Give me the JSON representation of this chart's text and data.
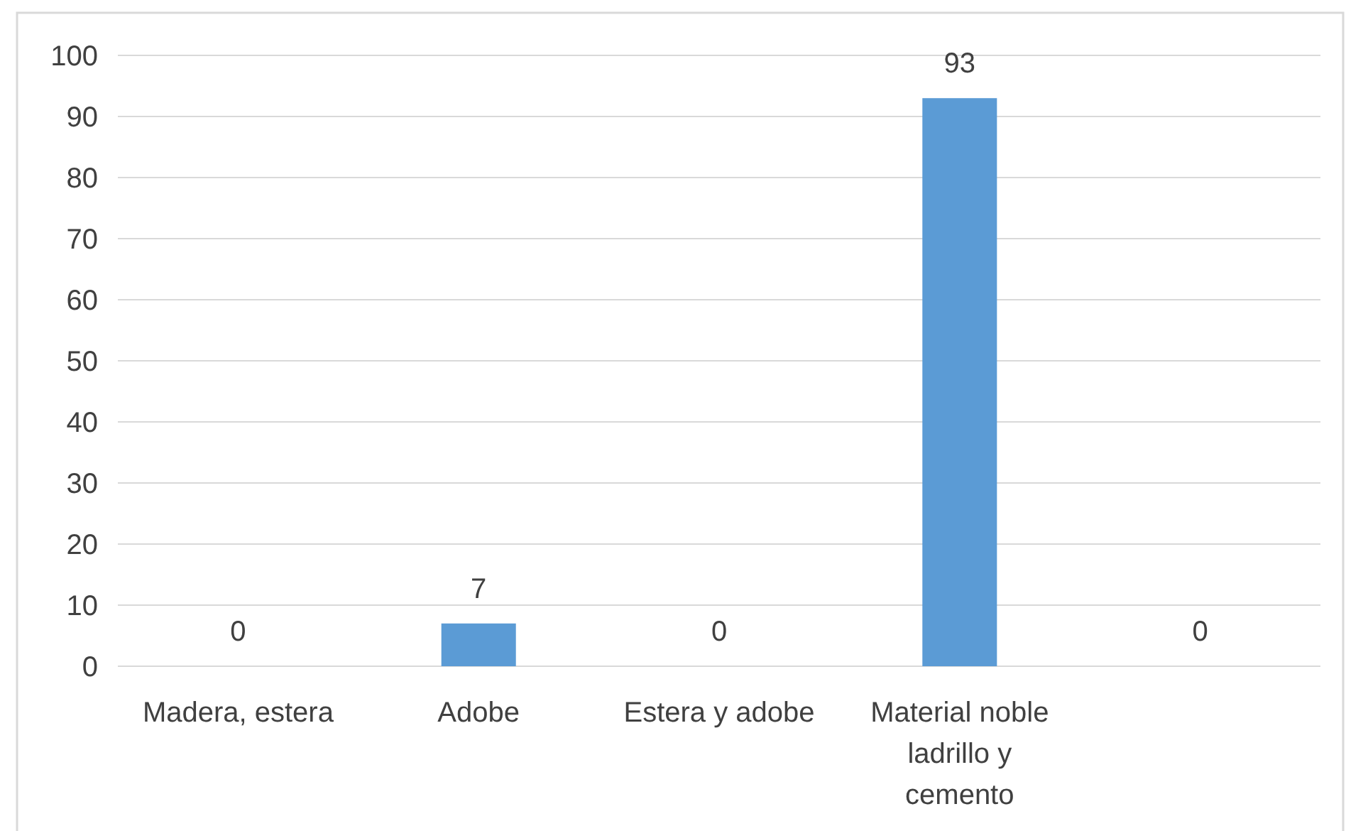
{
  "chart_data": {
    "type": "bar",
    "categories": [
      "Madera, estera",
      "Adobe",
      "Estera y adobe",
      "Material noble ladrillo y cemento",
      null
    ],
    "values": [
      0,
      7,
      0,
      93,
      0
    ],
    "color": "#5b9bd5",
    "ylim": [
      0,
      100
    ],
    "yticks": [
      0,
      10,
      20,
      30,
      40,
      50,
      60,
      70,
      80,
      90,
      100
    ],
    "grid": "y",
    "data_labels": true
  }
}
